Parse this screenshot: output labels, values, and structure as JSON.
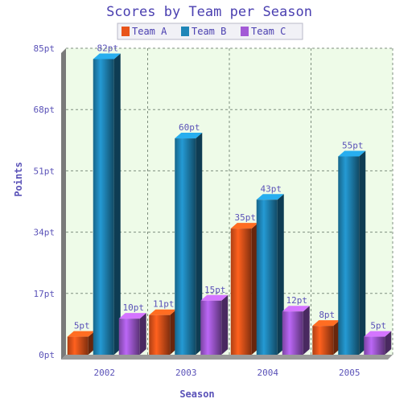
{
  "chart_data": {
    "type": "bar",
    "title": "Scores by Team per Season",
    "xlabel": "Season",
    "ylabel": "Points",
    "categories": [
      "2002",
      "2003",
      "2004",
      "2005"
    ],
    "series": [
      {
        "name": "Team A",
        "values": [
          5,
          11,
          35,
          8
        ],
        "labels": [
          "5pt",
          "11pt",
          "35pt",
          "8pt"
        ],
        "color": "#e8541a"
      },
      {
        "name": "Team B",
        "values": [
          82,
          60,
          43,
          55
        ],
        "labels": [
          "82pt",
          "60pt",
          "43pt",
          "55pt"
        ],
        "color": "#1f86b8"
      },
      {
        "name": "Team C",
        "values": [
          10,
          15,
          12,
          5
        ],
        "labels": [
          "10pt",
          "15pt",
          "12pt",
          "5pt"
        ],
        "color": "#a35ad6"
      }
    ],
    "ylim": [
      0,
      85
    ],
    "yticks": [
      0,
      17,
      34,
      51,
      68,
      85
    ],
    "ytick_labels": [
      "0pt",
      "17pt",
      "34pt",
      "51pt",
      "68pt",
      "85pt"
    ],
    "grid": true,
    "legend_position": "top-center",
    "plot_background": "#eefbe8"
  }
}
